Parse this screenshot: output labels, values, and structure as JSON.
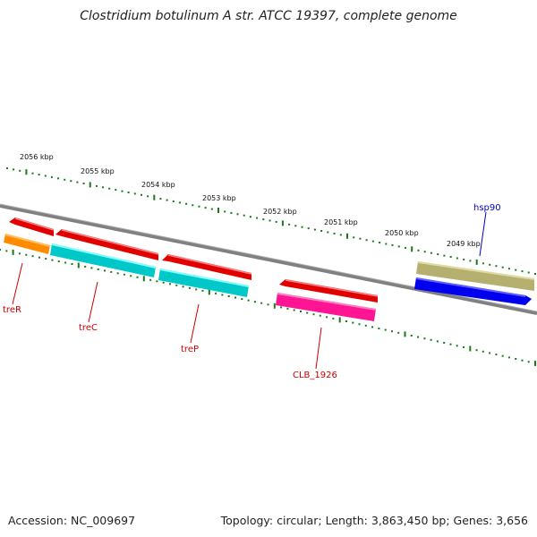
{
  "title": "Clostridium botulinum A str. ATCC 19397, complete genome",
  "footer": {
    "accession": "Accession: NC_009697",
    "stats": "Topology: circular; Length: 3,863,450 bp; Genes: 3,656"
  },
  "colors": {
    "backbone": "#808080",
    "tick": "#1a7a1a",
    "label_red": "#cc0000",
    "label_blue": "#0000cc"
  },
  "kbp_labels": [
    "2056 kbp",
    "2055 kbp",
    "2054 kbp",
    "2053 kbp",
    "2052 kbp",
    "2051 kbp",
    "2050 kbp",
    "2049 kbp"
  ],
  "genes": [
    {
      "name": "treR",
      "color": "#ff8c00"
    },
    {
      "name": "treC",
      "color": "#00c8c8"
    },
    {
      "name": "treP",
      "color": "#00c8c8"
    },
    {
      "name": "CLB_1926",
      "color": "#ff1493"
    },
    {
      "name": "hsp90",
      "color": "#b5b070"
    }
  ]
}
